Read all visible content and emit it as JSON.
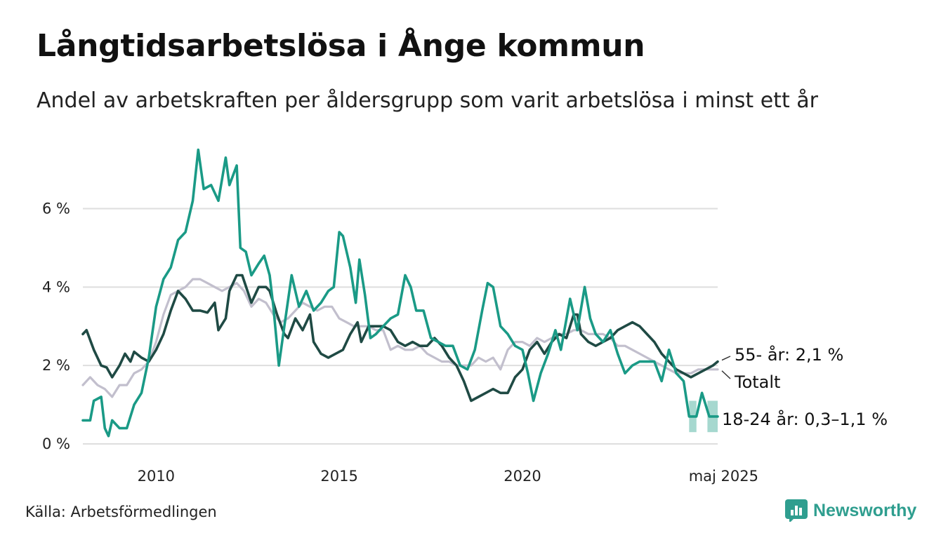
{
  "title": "Långtidsarbetslösa i Ånge kommun",
  "subtitle": "Andel av arbetskraften per åldersgrupp som varit arbetslösa i minst ett år",
  "source": "Källa: Arbetsförmedlingen",
  "brand": "Newsworthy",
  "colors": {
    "youth": "#1a9a86",
    "youth_band": "#a6d8cf",
    "older": "#1f4a44",
    "total": "#c2bfcd",
    "grid": "#dedede",
    "brand": "#2f9e8f"
  },
  "chart_data": {
    "type": "line",
    "x_unit": "year",
    "xlim": [
      2008.0,
      2025.33
    ],
    "ylim": [
      0,
      7.6
    ],
    "y_ticks": [
      {
        "value": 0,
        "label": "0 %"
      },
      {
        "value": 2,
        "label": "2 %"
      },
      {
        "value": 4,
        "label": "4 %"
      },
      {
        "value": 6,
        "label": "6 %"
      }
    ],
    "x_ticks": [
      {
        "value": 2010,
        "label": "2010"
      },
      {
        "value": 2015,
        "label": "2015"
      },
      {
        "value": 2020,
        "label": "2020"
      },
      {
        "value": 2025.33,
        "label": "maj 2025"
      }
    ],
    "grid": true,
    "end_labels": {
      "older": "55- år: 2,1 %",
      "total": "Totalt",
      "youth": "18-24 år: 0,3–1,1 %"
    },
    "series": [
      {
        "key": "total",
        "points": [
          [
            2008.0,
            1.5
          ],
          [
            2008.2,
            1.7
          ],
          [
            2008.4,
            1.5
          ],
          [
            2008.6,
            1.4
          ],
          [
            2008.8,
            1.2
          ],
          [
            2009.0,
            1.5
          ],
          [
            2009.2,
            1.5
          ],
          [
            2009.4,
            1.8
          ],
          [
            2009.6,
            1.9
          ],
          [
            2009.8,
            2.1
          ],
          [
            2010.0,
            2.6
          ],
          [
            2010.2,
            3.3
          ],
          [
            2010.4,
            3.8
          ],
          [
            2010.6,
            3.9
          ],
          [
            2010.8,
            4.0
          ],
          [
            2011.0,
            4.2
          ],
          [
            2011.2,
            4.2
          ],
          [
            2011.4,
            4.1
          ],
          [
            2011.6,
            4.0
          ],
          [
            2011.8,
            3.9
          ],
          [
            2012.0,
            4.0
          ],
          [
            2012.2,
            4.1
          ],
          [
            2012.4,
            3.9
          ],
          [
            2012.6,
            3.5
          ],
          [
            2012.8,
            3.7
          ],
          [
            2013.0,
            3.6
          ],
          [
            2013.2,
            3.3
          ],
          [
            2013.4,
            3.1
          ],
          [
            2013.6,
            3.2
          ],
          [
            2013.8,
            3.4
          ],
          [
            2014.0,
            3.6
          ],
          [
            2014.2,
            3.5
          ],
          [
            2014.4,
            3.4
          ],
          [
            2014.6,
            3.5
          ],
          [
            2014.8,
            3.5
          ],
          [
            2015.0,
            3.2
          ],
          [
            2015.2,
            3.1
          ],
          [
            2015.4,
            3.0
          ],
          [
            2015.6,
            3.0
          ],
          [
            2015.8,
            3.0
          ],
          [
            2016.0,
            2.9
          ],
          [
            2016.2,
            2.9
          ],
          [
            2016.4,
            2.4
          ],
          [
            2016.6,
            2.5
          ],
          [
            2016.8,
            2.4
          ],
          [
            2017.0,
            2.4
          ],
          [
            2017.2,
            2.5
          ],
          [
            2017.4,
            2.3
          ],
          [
            2017.6,
            2.2
          ],
          [
            2017.8,
            2.1
          ],
          [
            2018.0,
            2.1
          ],
          [
            2018.2,
            2.0
          ],
          [
            2018.4,
            2.0
          ],
          [
            2018.6,
            2.0
          ],
          [
            2018.8,
            2.2
          ],
          [
            2019.0,
            2.1
          ],
          [
            2019.2,
            2.2
          ],
          [
            2019.4,
            1.9
          ],
          [
            2019.6,
            2.4
          ],
          [
            2019.8,
            2.6
          ],
          [
            2020.0,
            2.6
          ],
          [
            2020.2,
            2.5
          ],
          [
            2020.4,
            2.7
          ],
          [
            2020.6,
            2.6
          ],
          [
            2020.8,
            2.7
          ],
          [
            2021.0,
            2.8
          ],
          [
            2021.2,
            2.8
          ],
          [
            2021.4,
            2.9
          ],
          [
            2021.6,
            2.9
          ],
          [
            2021.8,
            2.8
          ],
          [
            2022.0,
            2.8
          ],
          [
            2022.2,
            2.8
          ],
          [
            2022.4,
            2.7
          ],
          [
            2022.6,
            2.5
          ],
          [
            2022.8,
            2.5
          ],
          [
            2023.0,
            2.4
          ],
          [
            2023.2,
            2.3
          ],
          [
            2023.4,
            2.2
          ],
          [
            2023.6,
            2.1
          ],
          [
            2023.8,
            2.0
          ],
          [
            2024.0,
            1.9
          ],
          [
            2024.2,
            1.8
          ],
          [
            2024.4,
            1.8
          ],
          [
            2024.6,
            1.8
          ],
          [
            2024.8,
            1.9
          ],
          [
            2025.0,
            1.9
          ],
          [
            2025.33,
            1.9
          ]
        ]
      },
      {
        "key": "older",
        "points": [
          [
            2008.0,
            2.8
          ],
          [
            2008.1,
            2.9
          ],
          [
            2008.3,
            2.4
          ],
          [
            2008.5,
            2.0
          ],
          [
            2008.65,
            1.95
          ],
          [
            2008.8,
            1.7
          ],
          [
            2009.0,
            2.0
          ],
          [
            2009.15,
            2.3
          ],
          [
            2009.3,
            2.1
          ],
          [
            2009.4,
            2.35
          ],
          [
            2009.6,
            2.2
          ],
          [
            2009.8,
            2.1
          ],
          [
            2010.0,
            2.4
          ],
          [
            2010.2,
            2.8
          ],
          [
            2010.4,
            3.4
          ],
          [
            2010.6,
            3.9
          ],
          [
            2010.8,
            3.7
          ],
          [
            2011.0,
            3.4
          ],
          [
            2011.2,
            3.4
          ],
          [
            2011.4,
            3.35
          ],
          [
            2011.6,
            3.6
          ],
          [
            2011.7,
            2.9
          ],
          [
            2011.9,
            3.2
          ],
          [
            2012.0,
            3.9
          ],
          [
            2012.2,
            4.3
          ],
          [
            2012.35,
            4.3
          ],
          [
            2012.6,
            3.6
          ],
          [
            2012.8,
            4.0
          ],
          [
            2013.0,
            4.0
          ],
          [
            2013.1,
            3.9
          ],
          [
            2013.3,
            3.3
          ],
          [
            2013.5,
            2.8
          ],
          [
            2013.6,
            2.7
          ],
          [
            2013.8,
            3.2
          ],
          [
            2014.0,
            2.9
          ],
          [
            2014.2,
            3.3
          ],
          [
            2014.3,
            2.6
          ],
          [
            2014.5,
            2.3
          ],
          [
            2014.7,
            2.2
          ],
          [
            2014.9,
            2.3
          ],
          [
            2015.1,
            2.4
          ],
          [
            2015.3,
            2.8
          ],
          [
            2015.5,
            3.1
          ],
          [
            2015.6,
            2.6
          ],
          [
            2015.8,
            3.0
          ],
          [
            2016.0,
            3.0
          ],
          [
            2016.2,
            3.0
          ],
          [
            2016.4,
            2.9
          ],
          [
            2016.6,
            2.6
          ],
          [
            2016.8,
            2.5
          ],
          [
            2017.0,
            2.6
          ],
          [
            2017.2,
            2.5
          ],
          [
            2017.4,
            2.5
          ],
          [
            2017.6,
            2.7
          ],
          [
            2017.8,
            2.5
          ],
          [
            2018.0,
            2.2
          ],
          [
            2018.2,
            2.0
          ],
          [
            2018.4,
            1.6
          ],
          [
            2018.6,
            1.1
          ],
          [
            2018.8,
            1.2
          ],
          [
            2019.0,
            1.3
          ],
          [
            2019.2,
            1.4
          ],
          [
            2019.4,
            1.3
          ],
          [
            2019.6,
            1.3
          ],
          [
            2019.8,
            1.7
          ],
          [
            2020.0,
            1.9
          ],
          [
            2020.2,
            2.4
          ],
          [
            2020.4,
            2.6
          ],
          [
            2020.6,
            2.3
          ],
          [
            2020.8,
            2.6
          ],
          [
            2021.0,
            2.8
          ],
          [
            2021.2,
            2.7
          ],
          [
            2021.4,
            3.3
          ],
          [
            2021.5,
            3.3
          ],
          [
            2021.6,
            2.8
          ],
          [
            2021.8,
            2.6
          ],
          [
            2022.0,
            2.5
          ],
          [
            2022.2,
            2.6
          ],
          [
            2022.4,
            2.7
          ],
          [
            2022.6,
            2.9
          ],
          [
            2022.8,
            3.0
          ],
          [
            2023.0,
            3.1
          ],
          [
            2023.2,
            3.0
          ],
          [
            2023.4,
            2.8
          ],
          [
            2023.6,
            2.6
          ],
          [
            2023.8,
            2.3
          ],
          [
            2024.0,
            2.1
          ],
          [
            2024.2,
            1.9
          ],
          [
            2024.4,
            1.8
          ],
          [
            2024.6,
            1.7
          ],
          [
            2024.8,
            1.8
          ],
          [
            2025.0,
            1.9
          ],
          [
            2025.2,
            2.0
          ],
          [
            2025.33,
            2.1
          ]
        ]
      },
      {
        "key": "youth",
        "points": [
          [
            2008.0,
            0.6
          ],
          [
            2008.2,
            0.6
          ],
          [
            2008.3,
            1.1
          ],
          [
            2008.5,
            1.2
          ],
          [
            2008.6,
            0.4
          ],
          [
            2008.7,
            0.2
          ],
          [
            2008.8,
            0.6
          ],
          [
            2009.0,
            0.4
          ],
          [
            2009.2,
            0.4
          ],
          [
            2009.4,
            1.0
          ],
          [
            2009.6,
            1.3
          ],
          [
            2009.8,
            2.2
          ],
          [
            2010.0,
            3.5
          ],
          [
            2010.2,
            4.2
          ],
          [
            2010.4,
            4.5
          ],
          [
            2010.6,
            5.2
          ],
          [
            2010.8,
            5.4
          ],
          [
            2011.0,
            6.2
          ],
          [
            2011.15,
            7.5
          ],
          [
            2011.3,
            6.5
          ],
          [
            2011.5,
            6.6
          ],
          [
            2011.7,
            6.2
          ],
          [
            2011.9,
            7.3
          ],
          [
            2012.0,
            6.6
          ],
          [
            2012.2,
            7.1
          ],
          [
            2012.3,
            5.0
          ],
          [
            2012.45,
            4.9
          ],
          [
            2012.6,
            4.3
          ],
          [
            2012.8,
            4.6
          ],
          [
            2012.95,
            4.8
          ],
          [
            2013.1,
            4.3
          ],
          [
            2013.2,
            3.5
          ],
          [
            2013.35,
            2.0
          ],
          [
            2013.5,
            3.0
          ],
          [
            2013.7,
            4.3
          ],
          [
            2013.9,
            3.5
          ],
          [
            2014.1,
            3.9
          ],
          [
            2014.3,
            3.4
          ],
          [
            2014.5,
            3.6
          ],
          [
            2014.7,
            3.9
          ],
          [
            2014.85,
            4.0
          ],
          [
            2015.0,
            5.4
          ],
          [
            2015.1,
            5.3
          ],
          [
            2015.3,
            4.5
          ],
          [
            2015.45,
            3.6
          ],
          [
            2015.55,
            4.7
          ],
          [
            2015.7,
            3.8
          ],
          [
            2015.85,
            2.7
          ],
          [
            2016.0,
            2.8
          ],
          [
            2016.2,
            3.0
          ],
          [
            2016.4,
            3.2
          ],
          [
            2016.6,
            3.3
          ],
          [
            2016.8,
            4.3
          ],
          [
            2016.95,
            4.0
          ],
          [
            2017.1,
            3.4
          ],
          [
            2017.3,
            3.4
          ],
          [
            2017.5,
            2.7
          ],
          [
            2017.7,
            2.6
          ],
          [
            2017.9,
            2.5
          ],
          [
            2018.1,
            2.5
          ],
          [
            2018.3,
            2.0
          ],
          [
            2018.5,
            1.9
          ],
          [
            2018.7,
            2.4
          ],
          [
            2018.9,
            3.4
          ],
          [
            2019.05,
            4.1
          ],
          [
            2019.2,
            4.0
          ],
          [
            2019.4,
            3.0
          ],
          [
            2019.6,
            2.8
          ],
          [
            2019.8,
            2.5
          ],
          [
            2020.0,
            2.4
          ],
          [
            2020.15,
            1.8
          ],
          [
            2020.3,
            1.1
          ],
          [
            2020.5,
            1.8
          ],
          [
            2020.7,
            2.3
          ],
          [
            2020.9,
            2.9
          ],
          [
            2021.05,
            2.4
          ],
          [
            2021.3,
            3.7
          ],
          [
            2021.5,
            2.9
          ],
          [
            2021.7,
            4.0
          ],
          [
            2021.85,
            3.2
          ],
          [
            2022.0,
            2.8
          ],
          [
            2022.2,
            2.6
          ],
          [
            2022.4,
            2.9
          ],
          [
            2022.6,
            2.3
          ],
          [
            2022.8,
            1.8
          ],
          [
            2023.0,
            2.0
          ],
          [
            2023.2,
            2.1
          ],
          [
            2023.4,
            2.1
          ],
          [
            2023.6,
            2.1
          ],
          [
            2023.8,
            1.6
          ],
          [
            2024.0,
            2.4
          ],
          [
            2024.2,
            1.8
          ],
          [
            2024.4,
            1.6
          ],
          [
            2024.55,
            0.7
          ],
          [
            2024.75,
            0.7
          ],
          [
            2024.9,
            1.3
          ],
          [
            2025.1,
            0.7
          ],
          [
            2025.33,
            0.7
          ]
        ]
      }
    ],
    "youth_range_band": [
      {
        "x0": 2024.55,
        "x1": 2024.75,
        "low": 0.3,
        "high": 1.1
      },
      {
        "x0": 2025.05,
        "x1": 2025.33,
        "low": 0.3,
        "high": 1.1
      }
    ]
  }
}
